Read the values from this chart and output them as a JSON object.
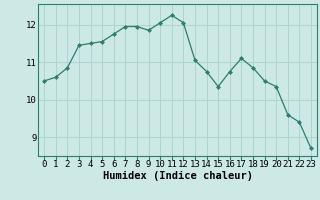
{
  "x": [
    0,
    1,
    2,
    3,
    4,
    5,
    6,
    7,
    8,
    9,
    10,
    11,
    12,
    13,
    14,
    15,
    16,
    17,
    18,
    19,
    20,
    21,
    22,
    23
  ],
  "y": [
    10.5,
    10.6,
    10.85,
    11.45,
    11.5,
    11.55,
    11.75,
    11.95,
    11.95,
    11.85,
    12.05,
    12.25,
    12.05,
    11.05,
    10.75,
    10.35,
    10.75,
    11.1,
    10.85,
    10.5,
    10.35,
    9.6,
    9.4,
    8.7
  ],
  "line_color": "#2e7d6e",
  "marker": "D",
  "marker_size": 2,
  "bg_color": "#cce9e5",
  "grid_color": "#aed4cf",
  "xlabel": "Humidex (Indice chaleur)",
  "xlim": [
    -0.5,
    23.5
  ],
  "ylim": [
    8.5,
    12.55
  ],
  "yticks": [
    9,
    10,
    11,
    12
  ],
  "xticks": [
    0,
    1,
    2,
    3,
    4,
    5,
    6,
    7,
    8,
    9,
    10,
    11,
    12,
    13,
    14,
    15,
    16,
    17,
    18,
    19,
    20,
    21,
    22,
    23
  ],
  "tick_fontsize": 6.5,
  "xlabel_fontsize": 7.5,
  "font_family": "monospace"
}
